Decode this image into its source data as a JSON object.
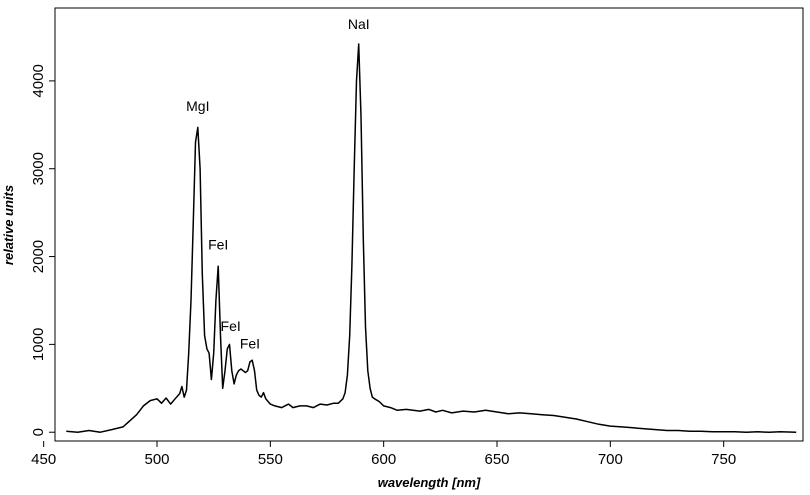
{
  "chart_data": {
    "type": "line",
    "title": "",
    "xlabel": "wavelength [nm]",
    "ylabel": "relative units",
    "xlim": [
      455,
      785
    ],
    "ylim": [
      -100,
      4830
    ],
    "x_ticks": [
      450,
      500,
      550,
      600,
      650,
      700,
      750
    ],
    "y_ticks": [
      0,
      1000,
      2000,
      3000,
      4000
    ],
    "x_tick_labels": [
      "450",
      "500",
      "550",
      "600",
      "650",
      "700",
      "750"
    ],
    "y_tick_labels": [
      "0",
      "1000",
      "2000",
      "3000",
      "4000"
    ],
    "grid": false,
    "legend": "none",
    "line_color": "#000000",
    "annotations": [
      {
        "text": "MgI",
        "x": 518,
        "y": 3660
      },
      {
        "text": "FeI",
        "x": 527,
        "y": 2080
      },
      {
        "text": "FeI",
        "x": 532.5,
        "y": 1150
      },
      {
        "text": "FeI",
        "x": 541,
        "y": 955
      },
      {
        "text": "NaI",
        "x": 589,
        "y": 4590
      }
    ],
    "series": [
      {
        "x": [
          460,
          465,
          470,
          475,
          480,
          485,
          488,
          491,
          494,
          497,
          500,
          502,
          504,
          506,
          508,
          510,
          511,
          512,
          513,
          514,
          515,
          516,
          517,
          518,
          519,
          520,
          521,
          522,
          523,
          524,
          525,
          526,
          527,
          528,
          529,
          530,
          531,
          532,
          533,
          534,
          535,
          536,
          537,
          538,
          539,
          540,
          541,
          542,
          543,
          544,
          545,
          546,
          547,
          548,
          550,
          552,
          555,
          558,
          560,
          563,
          566,
          569,
          572,
          575,
          578,
          580,
          582,
          583,
          584,
          585,
          586,
          587,
          588,
          589,
          590,
          591,
          592,
          593,
          594,
          595,
          596,
          598,
          600,
          603,
          606,
          610,
          613,
          616,
          620,
          623,
          626,
          630,
          635,
          640,
          645,
          650,
          655,
          660,
          665,
          670,
          675,
          680,
          685,
          690,
          695,
          700,
          705,
          710,
          715,
          720,
          725,
          730,
          735,
          740,
          745,
          750,
          755,
          760,
          765,
          770,
          775,
          782
        ],
        "y": [
          10,
          0,
          20,
          0,
          30,
          60,
          130,
          200,
          300,
          360,
          380,
          330,
          390,
          320,
          380,
          440,
          520,
          400,
          480,
          900,
          1500,
          2400,
          3300,
          3470,
          3000,
          1800,
          1100,
          950,
          900,
          600,
          900,
          1500,
          1890,
          1100,
          500,
          700,
          950,
          1000,
          700,
          550,
          650,
          700,
          720,
          700,
          680,
          700,
          800,
          820,
          700,
          480,
          420,
          400,
          450,
          380,
          320,
          300,
          280,
          320,
          280,
          300,
          300,
          280,
          320,
          310,
          330,
          330,
          380,
          450,
          650,
          1100,
          1900,
          3000,
          4000,
          4420,
          3600,
          2200,
          1200,
          700,
          500,
          400,
          380,
          350,
          300,
          280,
          250,
          260,
          250,
          240,
          260,
          230,
          250,
          220,
          240,
          230,
          250,
          230,
          210,
          220,
          210,
          200,
          190,
          170,
          150,
          120,
          90,
          70,
          60,
          50,
          40,
          30,
          20,
          20,
          10,
          10,
          5,
          5,
          5,
          0,
          5,
          0,
          5,
          0
        ]
      }
    ]
  }
}
